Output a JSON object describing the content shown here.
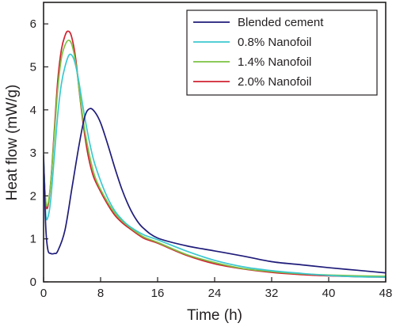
{
  "chart_data": {
    "type": "line",
    "title": "",
    "xlabel": "Time (h)",
    "ylabel": "Heat flow (mW/g)",
    "xlim": [
      0,
      48
    ],
    "ylim": [
      0,
      6.5
    ],
    "x_ticks": [
      0,
      8,
      16,
      24,
      32,
      40,
      48
    ],
    "y_ticks": [
      0,
      1,
      2,
      3,
      4,
      5,
      6
    ],
    "grid": false,
    "legend_position": "top-right",
    "series": [
      {
        "name": "Blended cement",
        "color": "#1f1c7a",
        "points": [
          [
            0,
            2.95
          ],
          [
            0.3,
            1.3
          ],
          [
            0.6,
            0.75
          ],
          [
            1,
            0.66
          ],
          [
            1.5,
            0.66
          ],
          [
            2,
            0.72
          ],
          [
            3,
            1.2
          ],
          [
            4,
            2.2
          ],
          [
            5,
            3.2
          ],
          [
            5.8,
            3.85
          ],
          [
            6.5,
            4.03
          ],
          [
            7.2,
            3.95
          ],
          [
            8,
            3.7
          ],
          [
            9,
            3.2
          ],
          [
            10,
            2.65
          ],
          [
            11,
            2.15
          ],
          [
            12,
            1.75
          ],
          [
            13,
            1.45
          ],
          [
            14,
            1.25
          ],
          [
            16,
            1.02
          ],
          [
            20,
            0.84
          ],
          [
            24,
            0.72
          ],
          [
            28,
            0.6
          ],
          [
            32,
            0.47
          ],
          [
            36,
            0.4
          ],
          [
            40,
            0.33
          ],
          [
            44,
            0.27
          ],
          [
            48,
            0.21
          ]
        ]
      },
      {
        "name": "0.8% Nanofoil",
        "color": "#3cc8d0",
        "points": [
          [
            0,
            2.9
          ],
          [
            0.3,
            1.6
          ],
          [
            0.6,
            1.5
          ],
          [
            1,
            1.9
          ],
          [
            1.5,
            2.9
          ],
          [
            2,
            3.9
          ],
          [
            2.5,
            4.6
          ],
          [
            3,
            5.0
          ],
          [
            3.6,
            5.28
          ],
          [
            4.2,
            5.2
          ],
          [
            4.8,
            4.8
          ],
          [
            5.5,
            4.1
          ],
          [
            6.2,
            3.45
          ],
          [
            7,
            2.85
          ],
          [
            8,
            2.35
          ],
          [
            9,
            1.95
          ],
          [
            10,
            1.65
          ],
          [
            11,
            1.45
          ],
          [
            12,
            1.3
          ],
          [
            14,
            1.1
          ],
          [
            16,
            0.98
          ],
          [
            20,
            0.72
          ],
          [
            24,
            0.5
          ],
          [
            28,
            0.35
          ],
          [
            32,
            0.26
          ],
          [
            36,
            0.2
          ],
          [
            40,
            0.15
          ],
          [
            44,
            0.12
          ],
          [
            48,
            0.11
          ]
        ]
      },
      {
        "name": "1.4% Nanofoil",
        "color": "#7cc242",
        "points": [
          [
            0,
            2.7
          ],
          [
            0.3,
            1.9
          ],
          [
            0.6,
            1.8
          ],
          [
            1,
            2.3
          ],
          [
            1.5,
            3.4
          ],
          [
            2,
            4.5
          ],
          [
            2.5,
            5.2
          ],
          [
            3,
            5.5
          ],
          [
            3.5,
            5.62
          ],
          [
            4,
            5.5
          ],
          [
            4.6,
            5.0
          ],
          [
            5.2,
            4.2
          ],
          [
            5.8,
            3.5
          ],
          [
            6.5,
            2.9
          ],
          [
            7.2,
            2.45
          ],
          [
            8,
            2.15
          ],
          [
            9,
            1.85
          ],
          [
            10,
            1.6
          ],
          [
            11,
            1.42
          ],
          [
            12,
            1.28
          ],
          [
            14,
            1.05
          ],
          [
            16,
            0.92
          ],
          [
            20,
            0.64
          ],
          [
            24,
            0.45
          ],
          [
            28,
            0.31
          ],
          [
            32,
            0.24
          ],
          [
            36,
            0.19
          ],
          [
            40,
            0.16
          ],
          [
            44,
            0.14
          ],
          [
            48,
            0.13
          ]
        ]
      },
      {
        "name": "2.0% Nanofoil",
        "color": "#d02230",
        "points": [
          [
            0,
            2.8
          ],
          [
            0.3,
            1.85
          ],
          [
            0.6,
            1.75
          ],
          [
            1,
            2.3
          ],
          [
            1.5,
            3.5
          ],
          [
            2,
            4.7
          ],
          [
            2.5,
            5.4
          ],
          [
            3,
            5.72
          ],
          [
            3.4,
            5.83
          ],
          [
            3.9,
            5.72
          ],
          [
            4.5,
            5.2
          ],
          [
            5.1,
            4.3
          ],
          [
            5.7,
            3.5
          ],
          [
            6.3,
            2.9
          ],
          [
            7,
            2.45
          ],
          [
            8,
            2.1
          ],
          [
            9,
            1.8
          ],
          [
            10,
            1.55
          ],
          [
            11,
            1.38
          ],
          [
            12,
            1.25
          ],
          [
            14,
            1.02
          ],
          [
            16,
            0.9
          ],
          [
            20,
            0.62
          ],
          [
            24,
            0.42
          ],
          [
            28,
            0.3
          ],
          [
            32,
            0.22
          ],
          [
            36,
            0.17
          ],
          [
            40,
            0.14
          ],
          [
            44,
            0.12
          ],
          [
            48,
            0.11
          ]
        ]
      }
    ]
  }
}
